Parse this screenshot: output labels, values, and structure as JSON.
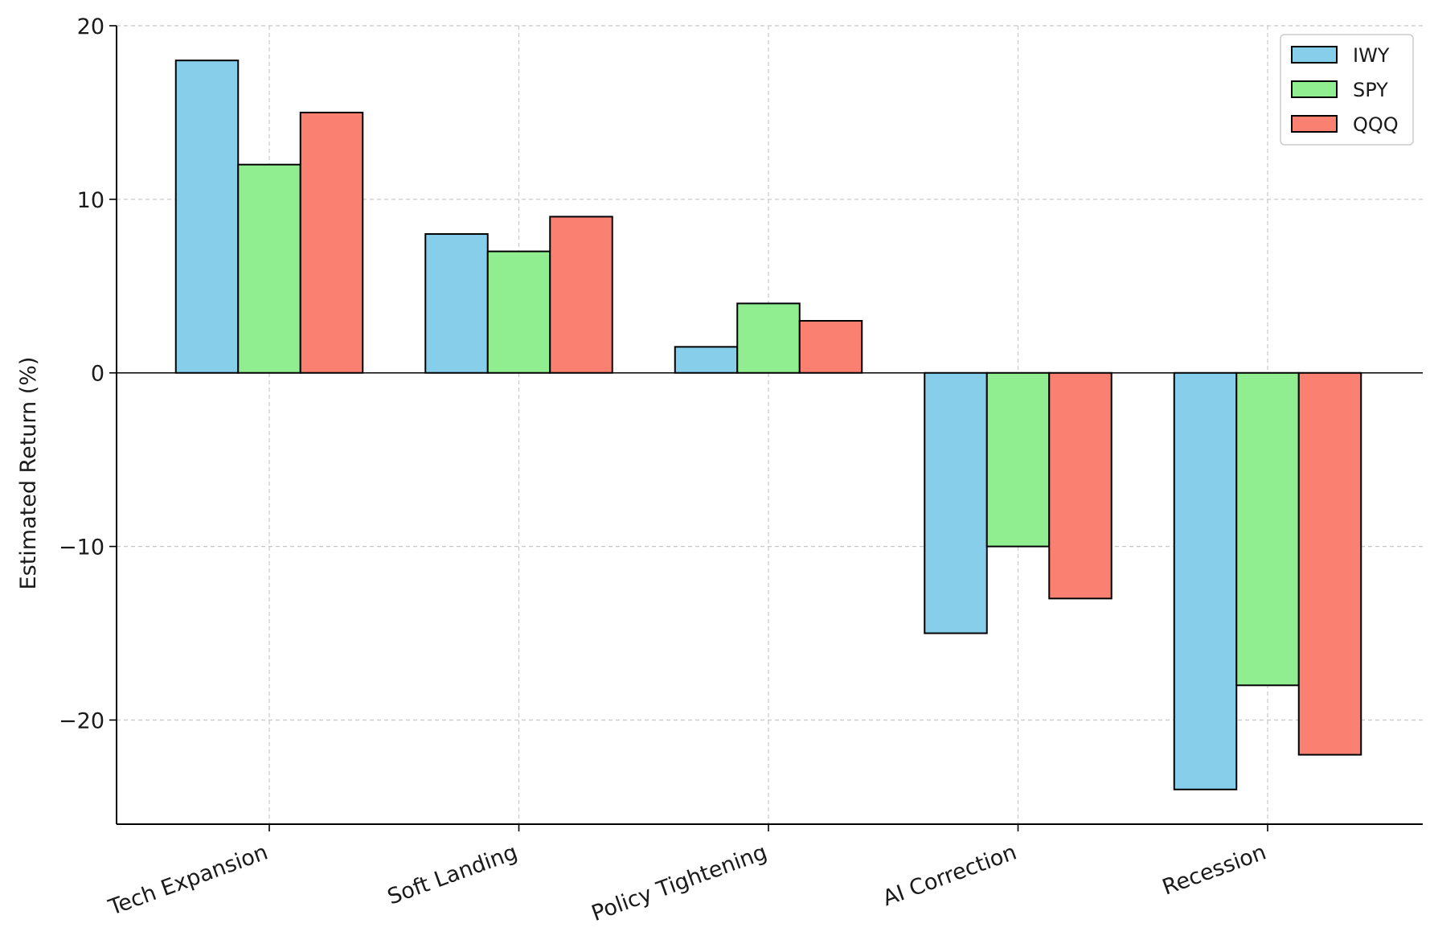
{
  "chart_data": {
    "type": "bar",
    "title": "",
    "xlabel": "",
    "ylabel": "Estimated Return (%)",
    "categories": [
      "Tech Expansion",
      "Soft Landing",
      "Policy Tightening",
      "AI Correction",
      "Recession"
    ],
    "series": [
      {
        "name": "IWY",
        "color": "#87CEEB",
        "values": [
          18,
          8,
          1.5,
          -15,
          -24
        ]
      },
      {
        "name": "SPY",
        "color": "#90EE90",
        "values": [
          12,
          7,
          4,
          -10,
          -18
        ]
      },
      {
        "name": "QQQ",
        "color": "#FA8072",
        "values": [
          15,
          9,
          3,
          -13,
          -22
        ]
      }
    ],
    "ylim": [
      -26,
      20
    ],
    "yticks": [
      -20,
      -10,
      0,
      10,
      20
    ],
    "ytick_labels": [
      "−20",
      "−10",
      "0",
      "10",
      "20"
    ],
    "grid": true,
    "legend_position": "top-right",
    "zero_line": true
  }
}
